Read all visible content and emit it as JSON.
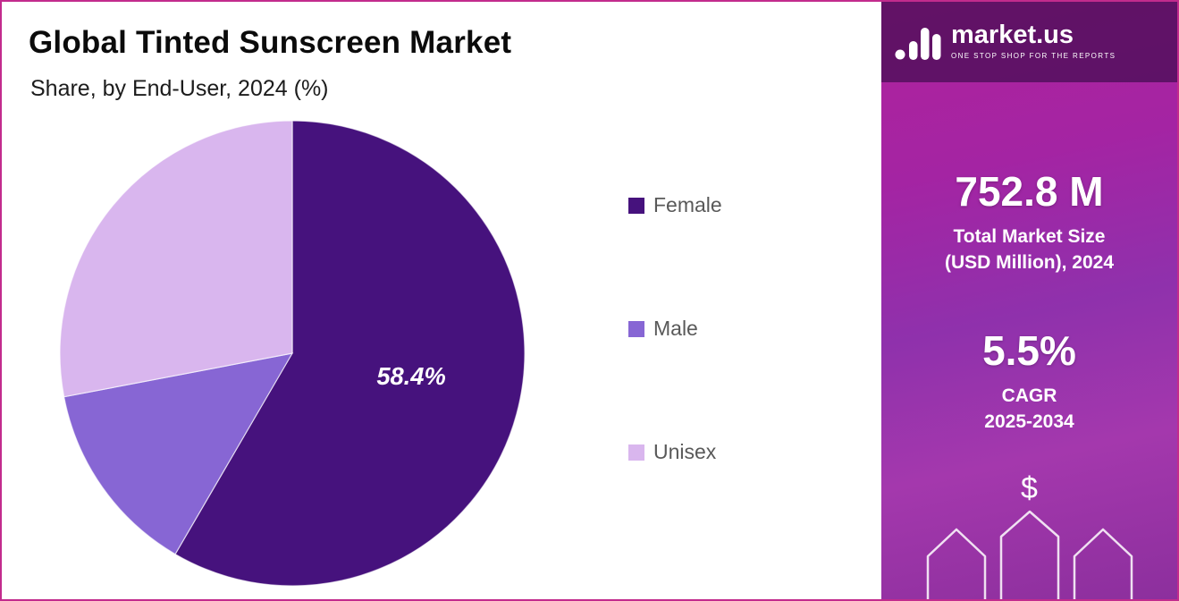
{
  "chart_data": {
    "type": "pie",
    "title": "Global Tinted Sunscreen Market",
    "subtitle": "Share, by End-User, 2024 (%)",
    "categories": [
      "Female",
      "Male",
      "Unisex"
    ],
    "values": [
      58.4,
      13.6,
      28.0
    ],
    "labels": [
      "58.4%",
      "",
      ""
    ],
    "colors": [
      "#46127D",
      "#8766D4",
      "#D9B6EE"
    ],
    "legend_position": "right",
    "start_angle_deg": 0,
    "direction": "clockwise"
  },
  "sidebar": {
    "brand": {
      "name": "market.us",
      "tagline": "ONE STOP SHOP FOR THE REPORTS"
    },
    "market_size": {
      "value": "752.8 M",
      "label_line1": "Total Market Size",
      "label_line2": "(USD Million), 2024"
    },
    "cagr": {
      "value": "5.5%",
      "label_line1": "CAGR",
      "label_line2": "2025-2034"
    },
    "dollar_symbol": "$"
  },
  "colors": {
    "frame_border": "#C22B8D",
    "panel_gradient_top": "#B0229C",
    "panel_gradient_bottom": "#8C2F9D",
    "panel_top_band": "rgba(34,6,56,0.55)",
    "legend_text": "#595959"
  }
}
